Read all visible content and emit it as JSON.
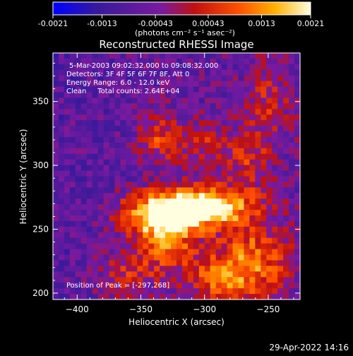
{
  "colorbar": {
    "tick_labels": [
      "-0.0021",
      "-0.0013",
      "-0.00043",
      "0.00043",
      "0.0013",
      "0.0021"
    ],
    "tick_values": [
      -0.0021,
      -0.0013,
      -0.00043,
      0.00043,
      0.0013,
      0.0021
    ],
    "range": [
      -0.0021,
      0.0021
    ],
    "units_label": "(photons cm⁻² s⁻¹ asec⁻²)",
    "colors": [
      "#0000ff",
      "#4a1a8c",
      "#8a1fb0",
      "#b02000",
      "#ff5000",
      "#ffb000",
      "#ffffd0"
    ]
  },
  "chart_data": {
    "type": "heatmap",
    "title": "Reconstructed RHESSI Image",
    "xlabel": "Heliocentric X (arcsec)",
    "ylabel": "Heliocentric Y (arcsec)",
    "xlim": [
      -419,
      -225
    ],
    "ylim": [
      195,
      388
    ],
    "x_ticks": [
      -400,
      -350,
      -300,
      -250
    ],
    "x_tick_labels": [
      "−400",
      "−350",
      "−300",
      "−250"
    ],
    "y_ticks": [
      200,
      250,
      300,
      350
    ],
    "y_tick_labels": [
      "200",
      "250",
      "300",
      "350"
    ],
    "annotations": [
      "5-Mar-2003 09:02:32.000 to 09:08:32.000",
      "Detectors: 3F 4F 5F 6F 7F 8F, Att 0",
      "Energy Range: 6.0 - 12.0 keV",
      "Clean     Total counts: 2.64E+04"
    ],
    "peak_label": "Position of Peak = [-297,268]",
    "peak": [
      -297,
      268
    ],
    "sources": [
      {
        "x": -297,
        "y": 268,
        "amp": 1.0,
        "sx": 24,
        "sy": 11
      },
      {
        "x": -335,
        "y": 262,
        "amp": 0.85,
        "sx": 22,
        "sy": 12
      },
      {
        "x": -330,
        "y": 240,
        "amp": 0.55,
        "sx": 16,
        "sy": 16
      },
      {
        "x": -262,
        "y": 225,
        "amp": 0.55,
        "sx": 20,
        "sy": 22
      },
      {
        "x": -290,
        "y": 212,
        "amp": 0.45,
        "sx": 18,
        "sy": 14
      },
      {
        "x": -335,
        "y": 322,
        "amp": 0.45,
        "sx": 12,
        "sy": 14
      },
      {
        "x": -300,
        "y": 318,
        "amp": 0.35,
        "sx": 14,
        "sy": 12
      },
      {
        "x": -265,
        "y": 305,
        "amp": 0.35,
        "sx": 12,
        "sy": 16
      },
      {
        "x": -250,
        "y": 350,
        "amp": 0.3,
        "sx": 12,
        "sy": 20
      },
      {
        "x": -360,
        "y": 215,
        "amp": 0.35,
        "sx": 16,
        "sy": 14
      }
    ]
  },
  "footer": {
    "timestamp": "29-Apr-2022 14:16"
  }
}
